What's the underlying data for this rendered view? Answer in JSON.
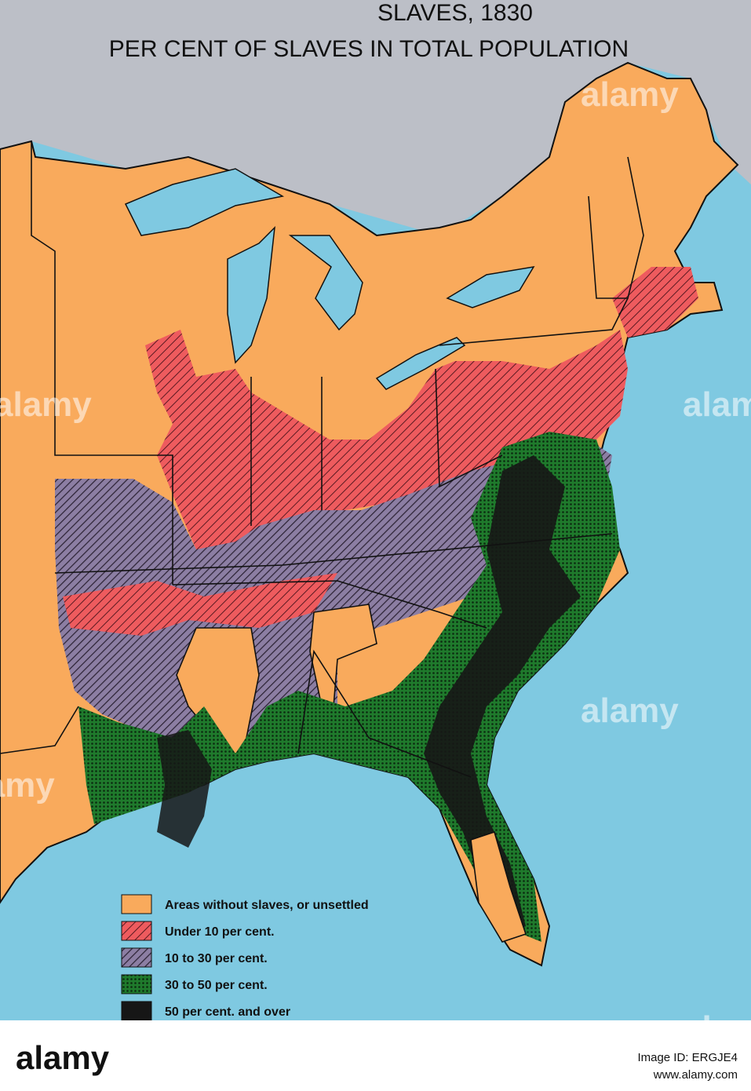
{
  "header": {
    "title": "SLAVES, 1830",
    "subtitle": "PER CENT OF SLAVES IN TOTAL POPULATION"
  },
  "legend": [
    {
      "label": "Areas without slaves, or unsettled",
      "color": "#f9aa5c"
    },
    {
      "label": "Under 10 per cent.",
      "color": "#ee5b5e"
    },
    {
      "label": "10 to 30 per cent.",
      "color": "#8c7ea3"
    },
    {
      "label": "30 to 50 per cent.",
      "color": "#1f7a2c"
    },
    {
      "label": "50 per cent. and over",
      "color": "#161616"
    }
  ],
  "watermarks": [
    "alamy",
    "alamy",
    "alamy",
    "alamy",
    "alamy",
    "alamy"
  ],
  "footer": {
    "logo": "alamy",
    "image_id": "Image ID: ERGJE4",
    "site": "www.alamy.com"
  }
}
